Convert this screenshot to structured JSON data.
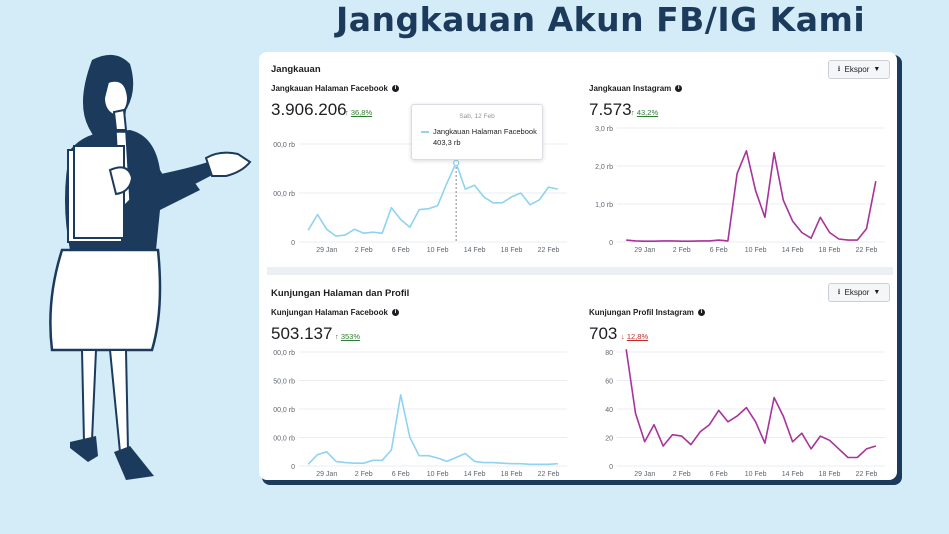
{
  "page_title": "Jangkauan Akun FB/IG Kami",
  "colors": {
    "background": "#d4ecf8",
    "title": "#1b3a5c",
    "facebook_line": "#8fd3f0",
    "instagram_line": "#a8339a"
  },
  "sections": [
    {
      "title": "Jangkauan",
      "export_label": "Ekspor"
    },
    {
      "title": "Kunjungan Halaman dan Profil",
      "export_label": "Ekspor"
    }
  ],
  "tooltip": {
    "date": "Sab, 12 Feb",
    "series": "Jangkauan Halaman Facebook",
    "value": "403,3 rb"
  },
  "panels": [
    {
      "label": "Jangkauan Halaman Facebook",
      "value": "3.906.206",
      "change_arrow": "↑",
      "change": "36,8%",
      "direction": "up"
    },
    {
      "label": "Jangkauan Instagram",
      "value": "7.573",
      "change_arrow": "↑",
      "change": "43,2%",
      "direction": "up"
    },
    {
      "label": "Kunjungan Halaman Facebook",
      "value": "503.137",
      "change_arrow": "↑",
      "change": "353%",
      "direction": "up"
    },
    {
      "label": "Kunjungan Profil Instagram",
      "value": "703",
      "change_arrow": "↓",
      "change": "12,8%",
      "direction": "down"
    }
  ],
  "chart_data": [
    {
      "type": "line",
      "title": "Jangkauan Halaman Facebook",
      "x_tick_labels": [
        "29 Jan",
        "2 Feb",
        "6 Feb",
        "10 Feb",
        "14 Feb",
        "18 Feb",
        "22 Feb"
      ],
      "y_tick_labels": [
        "0",
        "00,0 rb",
        "00,0 rb"
      ],
      "ylim": [
        0,
        500
      ],
      "x_start_day": 26,
      "x_end_day": 55,
      "series": [
        {
          "color": "#8fd3f0",
          "values": [
            60,
            140,
            65,
            30,
            35,
            65,
            45,
            50,
            45,
            175,
            115,
            75,
            165,
            170,
            185,
            300,
            403,
            270,
            290,
            230,
            200,
            200,
            230,
            250,
            190,
            215,
            280,
            270
          ]
        }
      ],
      "grid": true
    },
    {
      "type": "line",
      "title": "Jangkauan Instagram",
      "x_tick_labels": [
        "29 Jan",
        "2 Feb",
        "6 Feb",
        "10 Feb",
        "14 Feb",
        "18 Feb",
        "22 Feb"
      ],
      "y_tick_labels": [
        "0",
        "1,0 rb",
        "2,0 rb",
        "3,0 rb"
      ],
      "ylim": [
        0,
        3
      ],
      "x_start_day": 26,
      "x_end_day": 55,
      "series": [
        {
          "color": "#a8339a",
          "values": [
            0.05,
            0.03,
            0.02,
            0.02,
            0.03,
            0.03,
            0.02,
            0.02,
            0.03,
            0.03,
            0.05,
            0.03,
            1.8,
            2.4,
            1.35,
            0.65,
            2.35,
            1.1,
            0.55,
            0.25,
            0.1,
            0.65,
            0.25,
            0.08,
            0.05,
            0.05,
            0.35,
            1.6
          ]
        }
      ],
      "grid": true
    },
    {
      "type": "line",
      "title": "Kunjungan Halaman Facebook",
      "x_tick_labels": [
        "29 Jan",
        "2 Feb",
        "6 Feb",
        "10 Feb",
        "14 Feb",
        "18 Feb",
        "22 Feb"
      ],
      "y_tick_labels": [
        "0",
        "00,0 rb",
        "00,0 rb",
        "50,0 rb",
        "00,0 rb"
      ],
      "ylim": [
        0,
        200
      ],
      "x_start_day": 26,
      "x_end_day": 55,
      "series": [
        {
          "color": "#8fd3f0",
          "values": [
            3,
            20,
            25,
            8,
            6,
            5,
            5,
            10,
            10,
            28,
            125,
            50,
            18,
            18,
            14,
            8,
            15,
            22,
            8,
            6,
            6,
            5,
            4,
            4,
            3,
            3,
            3,
            4
          ]
        }
      ],
      "grid": true
    },
    {
      "type": "line",
      "title": "Kunjungan Profil Instagram",
      "x_tick_labels": [
        "29 Jan",
        "2 Feb",
        "6 Feb",
        "10 Feb",
        "14 Feb",
        "18 Feb",
        "22 Feb"
      ],
      "y_tick_labels": [
        "0",
        "20",
        "40",
        "60",
        "80"
      ],
      "ylim": [
        0,
        80
      ],
      "x_start_day": 26,
      "x_end_day": 55,
      "series": [
        {
          "color": "#a8339a",
          "values": [
            82,
            37,
            17,
            29,
            14,
            22,
            21,
            15,
            24,
            29,
            39,
            31,
            35,
            41,
            31,
            16,
            48,
            35,
            17,
            23,
            12,
            21,
            18,
            12,
            6,
            6,
            12,
            14
          ]
        }
      ],
      "grid": true
    }
  ]
}
